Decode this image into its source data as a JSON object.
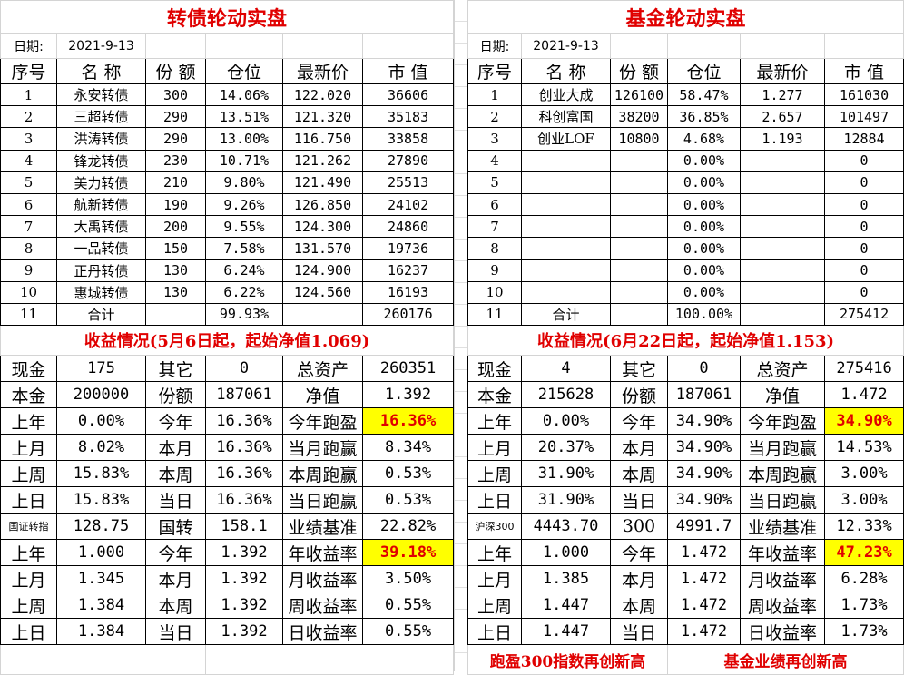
{
  "left": {
    "title": "转债轮动实盘",
    "date_label": "日期:",
    "date": "2021-9-13",
    "headers": [
      "序号",
      "名 称",
      "份 额",
      "仓位",
      "最新价",
      "市 值"
    ],
    "rows": [
      [
        "1",
        "永安转债",
        "300",
        "14.06%",
        "122.020",
        "36606"
      ],
      [
        "2",
        "三超转债",
        "290",
        "13.51%",
        "121.320",
        "35183"
      ],
      [
        "3",
        "洪涛转债",
        "290",
        "13.00%",
        "116.750",
        "33858"
      ],
      [
        "4",
        "锋龙转债",
        "230",
        "10.71%",
        "121.262",
        "27890"
      ],
      [
        "5",
        "美力转债",
        "210",
        "9.80%",
        "121.490",
        "25513"
      ],
      [
        "6",
        "航新转债",
        "190",
        "9.26%",
        "126.850",
        "24102"
      ],
      [
        "7",
        "大禹转债",
        "200",
        "9.55%",
        "124.300",
        "24860"
      ],
      [
        "8",
        "一品转债",
        "150",
        "7.58%",
        "131.570",
        "19736"
      ],
      [
        "9",
        "正丹转债",
        "130",
        "6.24%",
        "124.900",
        "16237"
      ],
      [
        "10",
        "惠城转债",
        "130",
        "6.22%",
        "124.560",
        "16193"
      ],
      [
        "11",
        "合计",
        "",
        "99.93%",
        "",
        "260176"
      ]
    ],
    "subtitle": "收益情况(5月6日起，起始净值1.069)",
    "stats": [
      [
        "现金",
        "175",
        "其它",
        "0",
        "总资产",
        "260351"
      ],
      [
        "本金",
        "200000",
        "份额",
        "187061",
        "净值",
        "1.392"
      ],
      [
        "上年",
        "0.00%",
        "今年",
        "16.36%",
        "今年跑盈",
        "16.36%"
      ],
      [
        "上月",
        "8.02%",
        "本月",
        "16.36%",
        "当月跑赢",
        "8.34%"
      ],
      [
        "上周",
        "15.83%",
        "本周",
        "16.36%",
        "本周跑赢",
        "0.53%"
      ],
      [
        "上日",
        "15.83%",
        "当日",
        "16.36%",
        "当日跑赢",
        "0.53%"
      ],
      [
        "国证转指",
        "128.75",
        "国转",
        "158.1",
        "业绩基准",
        "22.82%"
      ],
      [
        "上年",
        "1.000",
        "今年",
        "1.392",
        "年收益率",
        "39.18%"
      ],
      [
        "上月",
        "1.345",
        "本月",
        "1.392",
        "月收益率",
        "3.50%"
      ],
      [
        "上周",
        "1.384",
        "本周",
        "1.392",
        "周收益率",
        "0.55%"
      ],
      [
        "上日",
        "1.384",
        "当日",
        "1.392",
        "日收益率",
        "0.55%"
      ]
    ],
    "footer": [
      "",
      ""
    ]
  },
  "right": {
    "title": "基金轮动实盘",
    "date_label": "日期:",
    "date": "2021-9-13",
    "headers": [
      "序号",
      "名 称",
      "份 额",
      "仓位",
      "最新价",
      "市 值"
    ],
    "rows": [
      [
        "1",
        "创业大成",
        "126100",
        "58.47%",
        "1.277",
        "161030"
      ],
      [
        "2",
        "科创富国",
        "38200",
        "36.85%",
        "2.657",
        "101497"
      ],
      [
        "3",
        "创业LOF",
        "10800",
        "4.68%",
        "1.193",
        "12884"
      ],
      [
        "4",
        "",
        "",
        "0.00%",
        "",
        "0"
      ],
      [
        "5",
        "",
        "",
        "0.00%",
        "",
        "0"
      ],
      [
        "6",
        "",
        "",
        "0.00%",
        "",
        "0"
      ],
      [
        "7",
        "",
        "",
        "0.00%",
        "",
        "0"
      ],
      [
        "8",
        "",
        "",
        "0.00%",
        "",
        "0"
      ],
      [
        "9",
        "",
        "",
        "0.00%",
        "",
        "0"
      ],
      [
        "10",
        "",
        "",
        "0.00%",
        "",
        "0"
      ],
      [
        "11",
        "合计",
        "",
        "100.00%",
        "",
        "275412"
      ]
    ],
    "subtitle": "收益情况(6月22日起，起始净值1.153)",
    "stats": [
      [
        "现金",
        "4",
        "其它",
        "0",
        "总资产",
        "275416"
      ],
      [
        "本金",
        "215628",
        "份额",
        "187061",
        "净值",
        "1.472"
      ],
      [
        "上年",
        "0.00%",
        "今年",
        "34.90%",
        "今年跑盈",
        "34.90%"
      ],
      [
        "上月",
        "20.37%",
        "本月",
        "34.90%",
        "当月跑赢",
        "14.53%"
      ],
      [
        "上周",
        "31.90%",
        "本周",
        "34.90%",
        "本周跑赢",
        "3.00%"
      ],
      [
        "上日",
        "31.90%",
        "当日",
        "34.90%",
        "当日跑赢",
        "3.00%"
      ],
      [
        "沪深300",
        "4443.70",
        "300",
        "4991.7",
        "业绩基准",
        "12.33%"
      ],
      [
        "上年",
        "1.000",
        "今年",
        "1.472",
        "年收益率",
        "47.23%"
      ],
      [
        "上月",
        "1.385",
        "本月",
        "1.472",
        "月收益率",
        "6.28%"
      ],
      [
        "上周",
        "1.447",
        "本周",
        "1.472",
        "周收益率",
        "1.73%"
      ],
      [
        "上日",
        "1.447",
        "当日",
        "1.472",
        "日收益率",
        "1.73%"
      ]
    ],
    "footer": [
      "跑盈300指数再创新高",
      "基金业绩再创新高"
    ]
  },
  "highlight": {
    "background": "#ffff00",
    "text": "#e00000"
  }
}
